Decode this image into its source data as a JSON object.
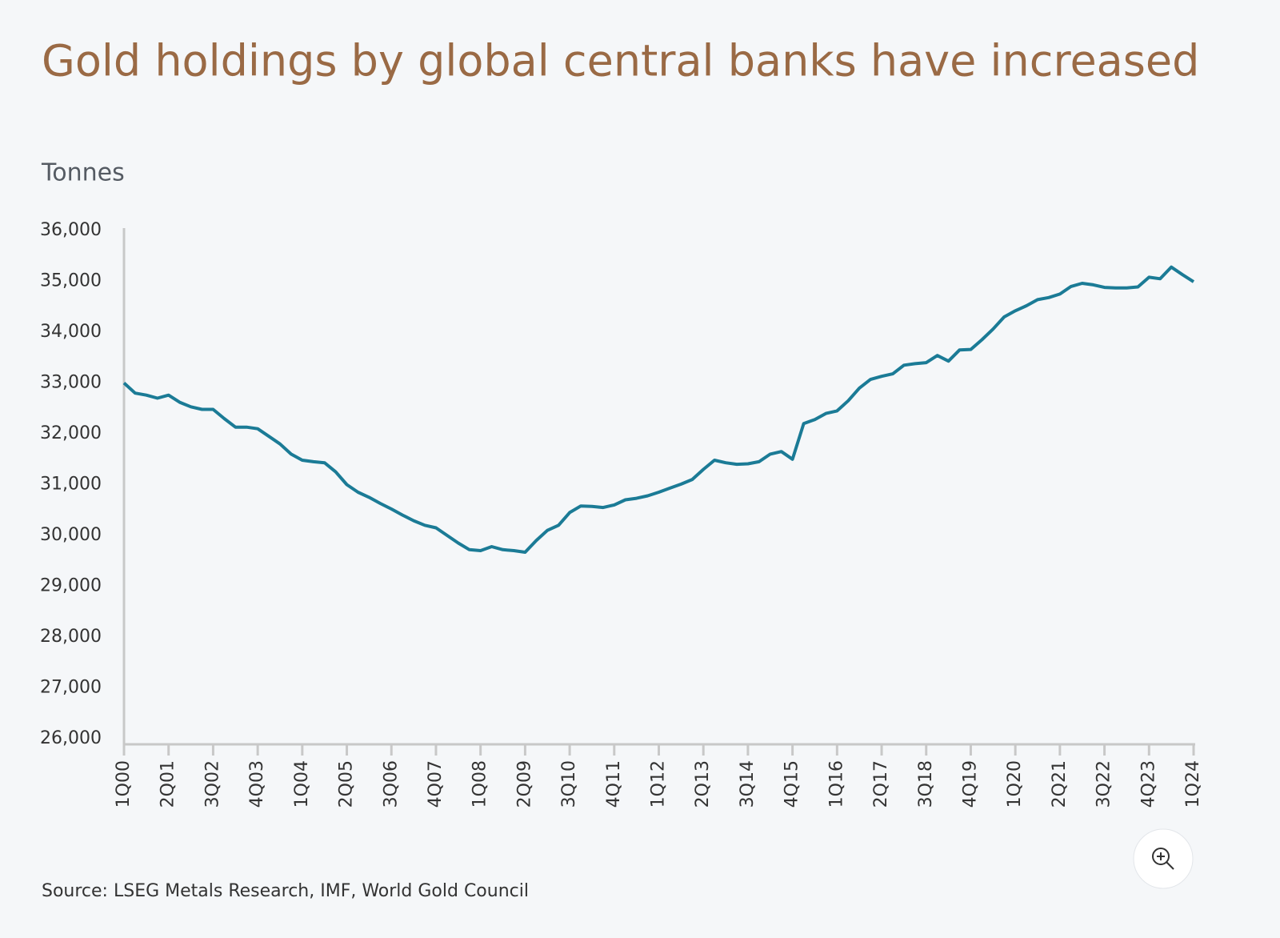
{
  "chart_data": {
    "type": "line",
    "title": "Gold holdings by global central banks have increased",
    "y_axis_label": "Tonnes",
    "source": "Source: LSEG Metals Research, IMF, World Gold Council",
    "categories": [
      "1Q00",
      null,
      null,
      null,
      "2Q01",
      null,
      null,
      null,
      "3Q02",
      null,
      null,
      null,
      "4Q03",
      null,
      null,
      null,
      "1Q04",
      null,
      null,
      null,
      "2Q05",
      null,
      null,
      null,
      "3Q06",
      null,
      null,
      null,
      "4Q07",
      null,
      null,
      null,
      "1Q08",
      null,
      null,
      null,
      "2Q09",
      null,
      null,
      null,
      "3Q10",
      null,
      null,
      null,
      "4Q11",
      null,
      null,
      null,
      "1Q12",
      null,
      null,
      null,
      "2Q13",
      null,
      null,
      null,
      "3Q14",
      null,
      null,
      null,
      "4Q15",
      null,
      null,
      null,
      "1Q16",
      null,
      null,
      null,
      "2Q17",
      null,
      null,
      null,
      "3Q18",
      null,
      null,
      null,
      "4Q19",
      null,
      null,
      null,
      "1Q20",
      null,
      null,
      null,
      "2Q21",
      null,
      null,
      null,
      "3Q22",
      null,
      null,
      null,
      "4Q23",
      null,
      null,
      null,
      "1Q24"
    ],
    "values": [
      33000,
      32800,
      32760,
      32700,
      32760,
      32620,
      32530,
      32480,
      32480,
      32300,
      32130,
      32130,
      32100,
      31950,
      31800,
      31600,
      31480,
      31450,
      31430,
      31250,
      31000,
      30850,
      30750,
      30630,
      30520,
      30400,
      30290,
      30200,
      30150,
      30000,
      29850,
      29720,
      29700,
      29780,
      29720,
      29700,
      29670,
      29900,
      30100,
      30200,
      30450,
      30580,
      30570,
      30550,
      30600,
      30700,
      30730,
      30780,
      30850,
      30930,
      31010,
      31100,
      31300,
      31480,
      31430,
      31400,
      31410,
      31450,
      31600,
      31650,
      31500,
      32200,
      32280,
      32400,
      32450,
      32650,
      32900,
      33070,
      33130,
      33180,
      33350,
      33380,
      33400,
      33540,
      33430,
      33650,
      33660,
      33850,
      34060,
      34300,
      34420,
      34520,
      34640,
      34680,
      34750,
      34900,
      34960,
      34930,
      34880,
      34870,
      34870,
      34890,
      35080,
      35050,
      35280,
      35130,
      34990
    ],
    "color": "#1b7b96",
    "ylim": [
      26000,
      36000
    ],
    "yticks": [
      {
        "value": 26000,
        "label": "26,000"
      },
      {
        "value": 27000,
        "label": "27,000"
      },
      {
        "value": 28000,
        "label": "28,000"
      },
      {
        "value": 29000,
        "label": "29,000"
      },
      {
        "value": 30000,
        "label": "30,000"
      },
      {
        "value": 31000,
        "label": "31,000"
      },
      {
        "value": 32000,
        "label": "32,000"
      },
      {
        "value": 33000,
        "label": "33,000"
      },
      {
        "value": 34000,
        "label": "34,000"
      },
      {
        "value": 35000,
        "label": "35,000"
      },
      {
        "value": 36000,
        "label": "36,000"
      }
    ],
    "grid": false
  }
}
